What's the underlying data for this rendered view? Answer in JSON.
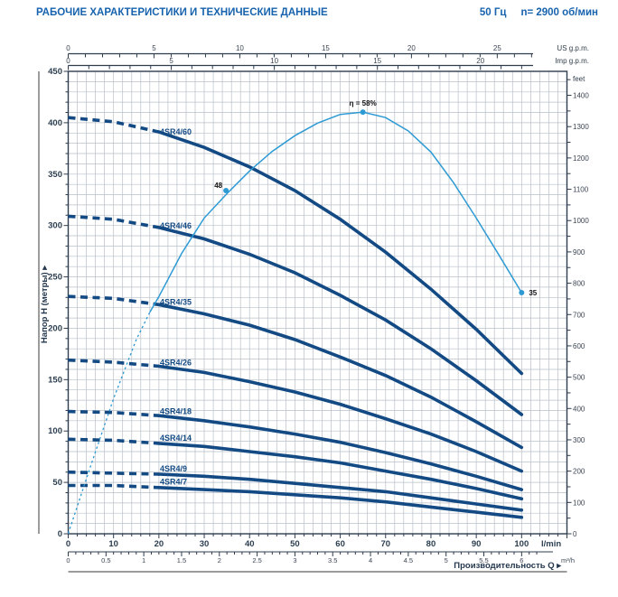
{
  "header": {
    "title": "РАБОЧИЕ ХАРАКТЕРИСТИКИ И ТЕХНИЧЕСКИЕ ДАННЫЕ",
    "frequency": "50 Гц",
    "speed": "n= 2900 об/мин"
  },
  "colors": {
    "title_blue": "#1763ae",
    "curve_navy": "#134a84",
    "efficiency_blue": "#2d9ad4",
    "grid": "#b9c0c8",
    "axis_dark": "#2f3c4e",
    "rule_dark": "#3a3a3a"
  },
  "chart_data": {
    "type": "line",
    "title": "",
    "xlabel": "Производительность Q ▸",
    "ylabel": "Напор H (метры) ▸",
    "x_axis": {
      "unit_primary": "l/min",
      "ticks_lmin": [
        0,
        10,
        20,
        30,
        40,
        50,
        60,
        70,
        80,
        90,
        100
      ],
      "range_lmin": [
        0,
        110
      ],
      "unit_secondary": "m³/h",
      "ticks_m3h": [
        0,
        0.5,
        1,
        1.5,
        2,
        2.5,
        3,
        3.5,
        4,
        4.5,
        5,
        5.5,
        6
      ]
    },
    "y_axis": {
      "unit_left": "метры",
      "ticks_m": [
        0,
        50,
        100,
        150,
        200,
        250,
        300,
        350,
        400,
        450
      ],
      "range_m": [
        0,
        450
      ],
      "unit_right": "feet",
      "ticks_feet": [
        0,
        100,
        200,
        300,
        400,
        500,
        600,
        700,
        800,
        900,
        1000,
        1100,
        1200,
        1300,
        1400
      ]
    },
    "top_axes": {
      "us_label": "US g.p.m.",
      "us_ticks": [
        0,
        5,
        10,
        15,
        20,
        25
      ],
      "us_minor_max": 27,
      "imp_label": "Imp g.p.m.",
      "imp_ticks": [
        0,
        5,
        10,
        15,
        20
      ],
      "imp_minor_max": 22
    },
    "series": [
      {
        "name": "4SR4/60",
        "dash_until": 20,
        "points": [
          [
            0,
            405
          ],
          [
            10,
            401
          ],
          [
            20,
            391
          ],
          [
            30,
            376
          ],
          [
            40,
            357
          ],
          [
            50,
            334
          ],
          [
            60,
            306
          ],
          [
            70,
            274
          ],
          [
            80,
            238
          ],
          [
            90,
            199
          ],
          [
            100,
            156
          ]
        ]
      },
      {
        "name": "4SR4/46",
        "dash_until": 20,
        "points": [
          [
            0,
            309
          ],
          [
            10,
            306
          ],
          [
            20,
            298
          ],
          [
            30,
            287
          ],
          [
            40,
            272
          ],
          [
            50,
            254
          ],
          [
            60,
            232
          ],
          [
            70,
            208
          ],
          [
            80,
            180
          ],
          [
            90,
            149
          ],
          [
            100,
            116
          ]
        ]
      },
      {
        "name": "4SR4/35",
        "dash_until": 20,
        "points": [
          [
            0,
            231
          ],
          [
            10,
            229
          ],
          [
            20,
            223
          ],
          [
            30,
            214
          ],
          [
            40,
            203
          ],
          [
            50,
            189
          ],
          [
            60,
            172
          ],
          [
            70,
            154
          ],
          [
            80,
            133
          ],
          [
            90,
            109
          ],
          [
            100,
            84
          ]
        ]
      },
      {
        "name": "4SR4/26",
        "dash_until": 20,
        "points": [
          [
            0,
            169
          ],
          [
            10,
            167
          ],
          [
            20,
            163
          ],
          [
            30,
            157
          ],
          [
            40,
            148
          ],
          [
            50,
            138
          ],
          [
            60,
            126
          ],
          [
            70,
            112
          ],
          [
            80,
            97
          ],
          [
            90,
            80
          ],
          [
            100,
            61
          ]
        ]
      },
      {
        "name": "4SR4/18",
        "dash_until": 20,
        "points": [
          [
            0,
            119
          ],
          [
            10,
            118
          ],
          [
            20,
            115
          ],
          [
            30,
            110
          ],
          [
            40,
            104
          ],
          [
            50,
            97
          ],
          [
            60,
            89
          ],
          [
            70,
            79
          ],
          [
            80,
            68
          ],
          [
            90,
            56
          ],
          [
            100,
            43
          ]
        ]
      },
      {
        "name": "4SR4/14",
        "dash_until": 20,
        "points": [
          [
            0,
            92
          ],
          [
            10,
            91
          ],
          [
            20,
            88
          ],
          [
            30,
            85
          ],
          [
            40,
            80
          ],
          [
            50,
            75
          ],
          [
            60,
            69
          ],
          [
            70,
            61
          ],
          [
            80,
            53
          ],
          [
            90,
            44
          ],
          [
            100,
            34
          ]
        ]
      },
      {
        "name": "4SR4/9",
        "dash_until": 20,
        "points": [
          [
            0,
            60
          ],
          [
            10,
            59
          ],
          [
            20,
            58
          ],
          [
            30,
            56
          ],
          [
            40,
            53
          ],
          [
            50,
            49
          ],
          [
            60,
            45
          ],
          [
            70,
            41
          ],
          [
            80,
            35
          ],
          [
            90,
            29
          ],
          [
            100,
            23
          ]
        ]
      },
      {
        "name": "4SR4/7",
        "dash_until": 20,
        "points": [
          [
            0,
            47
          ],
          [
            10,
            47
          ],
          [
            20,
            45
          ],
          [
            30,
            43
          ],
          [
            40,
            41
          ],
          [
            50,
            38
          ],
          [
            60,
            35
          ],
          [
            70,
            31
          ],
          [
            80,
            26
          ],
          [
            90,
            21
          ],
          [
            100,
            16
          ]
        ]
      }
    ],
    "efficiency_curve": {
      "name": "η",
      "dash_until": 18,
      "points": [
        [
          0,
          4.3
        ],
        [
          5,
          13
        ],
        [
          10,
          21.5
        ],
        [
          15,
          29
        ],
        [
          18,
          32.5
        ],
        [
          20,
          34.5
        ],
        [
          25,
          40
        ],
        [
          30,
          44.5
        ],
        [
          35,
          47.6
        ],
        [
          40,
          50.5
        ],
        [
          45,
          53
        ],
        [
          50,
          55
        ],
        [
          55,
          56.6
        ],
        [
          60,
          57.7
        ],
        [
          65,
          58
        ],
        [
          70,
          57.3
        ],
        [
          75,
          55.6
        ],
        [
          80,
          52.9
        ],
        [
          85,
          49
        ],
        [
          90,
          44.5
        ],
        [
          95,
          39.8
        ],
        [
          100,
          35
        ]
      ],
      "peak": {
        "q": 65,
        "eta": 58,
        "label": "η = 58%"
      },
      "mid_point": {
        "q": 34.8,
        "eta": 48,
        "label": "48"
      },
      "end_point": {
        "q": 100,
        "eta": 35,
        "label": "35"
      }
    }
  }
}
